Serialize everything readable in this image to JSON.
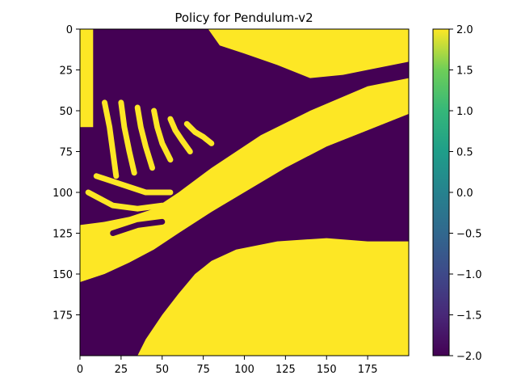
{
  "chart_data": {
    "type": "heatmap",
    "title": "Policy for Pendulum-v2",
    "xlabel": "",
    "ylabel": "",
    "x_range": [
      0,
      200
    ],
    "y_range": [
      0,
      200
    ],
    "y_inverted": true,
    "x_ticks": [
      0,
      25,
      50,
      75,
      100,
      125,
      150,
      175
    ],
    "y_ticks": [
      0,
      25,
      50,
      75,
      100,
      125,
      150,
      175
    ],
    "value_range": [
      -2.0,
      2.0
    ],
    "colormap": "viridis",
    "colorbar": {
      "ticks": [
        2.0,
        1.5,
        1.0,
        0.5,
        0.0,
        -0.5,
        -1.0,
        -1.5,
        -2.0
      ],
      "tick_labels": [
        "2.0",
        "1.5",
        "1.0",
        "0.5",
        "0.0",
        "−0.5",
        "−1.0",
        "−1.5",
        "−2.0"
      ]
    },
    "colors": {
      "high": "#fde725",
      "low": "#440154"
    },
    "regions": [
      {
        "value": -2.0,
        "label": "upper-right low region",
        "polygon": [
          [
            0,
            0
          ],
          [
            200,
            0
          ],
          [
            200,
            30
          ],
          [
            175,
            35
          ],
          [
            140,
            50
          ],
          [
            110,
            65
          ],
          [
            80,
            85
          ],
          [
            60,
            100
          ],
          [
            45,
            110
          ],
          [
            30,
            115
          ],
          [
            15,
            118
          ],
          [
            0,
            120
          ]
        ]
      },
      {
        "value": 2.0,
        "label": "diagonal high band",
        "polygon": [
          [
            0,
            120
          ],
          [
            15,
            118
          ],
          [
            30,
            115
          ],
          [
            45,
            110
          ],
          [
            60,
            100
          ],
          [
            80,
            85
          ],
          [
            110,
            65
          ],
          [
            140,
            50
          ],
          [
            175,
            35
          ],
          [
            200,
            30
          ],
          [
            200,
            52
          ],
          [
            175,
            62
          ],
          [
            150,
            72
          ],
          [
            125,
            85
          ],
          [
            100,
            100
          ],
          [
            80,
            112
          ],
          [
            60,
            125
          ],
          [
            45,
            135
          ],
          [
            30,
            143
          ],
          [
            15,
            150
          ],
          [
            0,
            155
          ]
        ]
      },
      {
        "value": -2.0,
        "label": "lower-left low region",
        "polygon": [
          [
            0,
            155
          ],
          [
            15,
            150
          ],
          [
            30,
            143
          ],
          [
            45,
            135
          ],
          [
            60,
            125
          ],
          [
            80,
            112
          ],
          [
            100,
            100
          ],
          [
            125,
            85
          ],
          [
            150,
            72
          ],
          [
            175,
            62
          ],
          [
            200,
            52
          ],
          [
            200,
            130
          ],
          [
            175,
            130
          ],
          [
            150,
            128
          ],
          [
            120,
            130
          ],
          [
            95,
            135
          ],
          [
            80,
            142
          ],
          [
            70,
            150
          ],
          [
            60,
            162
          ],
          [
            50,
            175
          ],
          [
            40,
            190
          ],
          [
            35,
            200
          ],
          [
            0,
            200
          ]
        ]
      },
      {
        "value": 2.0,
        "label": "lower-right high region",
        "polygon": [
          [
            35,
            200
          ],
          [
            40,
            190
          ],
          [
            50,
            175
          ],
          [
            60,
            162
          ],
          [
            70,
            150
          ],
          [
            80,
            142
          ],
          [
            95,
            135
          ],
          [
            120,
            130
          ],
          [
            150,
            128
          ],
          [
            175,
            130
          ],
          [
            200,
            130
          ],
          [
            200,
            200
          ]
        ]
      },
      {
        "value": 2.0,
        "label": "upper-left high patch",
        "polygon": [
          [
            0,
            0
          ],
          [
            8,
            0
          ],
          [
            8,
            60
          ],
          [
            0,
            60
          ]
        ]
      },
      {
        "value": 2.0,
        "label": "top-right high patch",
        "polygon": [
          [
            78,
            0
          ],
          [
            200,
            0
          ],
          [
            200,
            20
          ],
          [
            175,
            25
          ],
          [
            160,
            28
          ],
          [
            140,
            30
          ],
          [
            120,
            22
          ],
          [
            100,
            15
          ],
          [
            85,
            10
          ]
        ]
      }
    ],
    "stripes": [
      {
        "value": 2.0,
        "points": [
          [
            15,
            45
          ],
          [
            18,
            60
          ],
          [
            20,
            75
          ],
          [
            22,
            90
          ]
        ]
      },
      {
        "value": 2.0,
        "points": [
          [
            25,
            45
          ],
          [
            27,
            60
          ],
          [
            30,
            75
          ],
          [
            33,
            88
          ]
        ]
      },
      {
        "value": 2.0,
        "points": [
          [
            35,
            48
          ],
          [
            37,
            60
          ],
          [
            40,
            72
          ],
          [
            44,
            85
          ]
        ]
      },
      {
        "value": 2.0,
        "points": [
          [
            45,
            50
          ],
          [
            47,
            60
          ],
          [
            50,
            70
          ],
          [
            55,
            80
          ]
        ]
      },
      {
        "value": 2.0,
        "points": [
          [
            55,
            55
          ],
          [
            58,
            62
          ],
          [
            62,
            68
          ],
          [
            67,
            75
          ]
        ]
      },
      {
        "value": 2.0,
        "points": [
          [
            65,
            58
          ],
          [
            70,
            63
          ],
          [
            75,
            66
          ],
          [
            80,
            70
          ]
        ]
      },
      {
        "value": 2.0,
        "points": [
          [
            10,
            90
          ],
          [
            25,
            95
          ],
          [
            40,
            100
          ],
          [
            55,
            100
          ]
        ]
      },
      {
        "value": 2.0,
        "points": [
          [
            5,
            100
          ],
          [
            20,
            108
          ],
          [
            35,
            110
          ],
          [
            50,
            108
          ]
        ]
      },
      {
        "value": -2.0,
        "points": [
          [
            20,
            125
          ],
          [
            35,
            120
          ],
          [
            50,
            118
          ]
        ]
      }
    ]
  }
}
